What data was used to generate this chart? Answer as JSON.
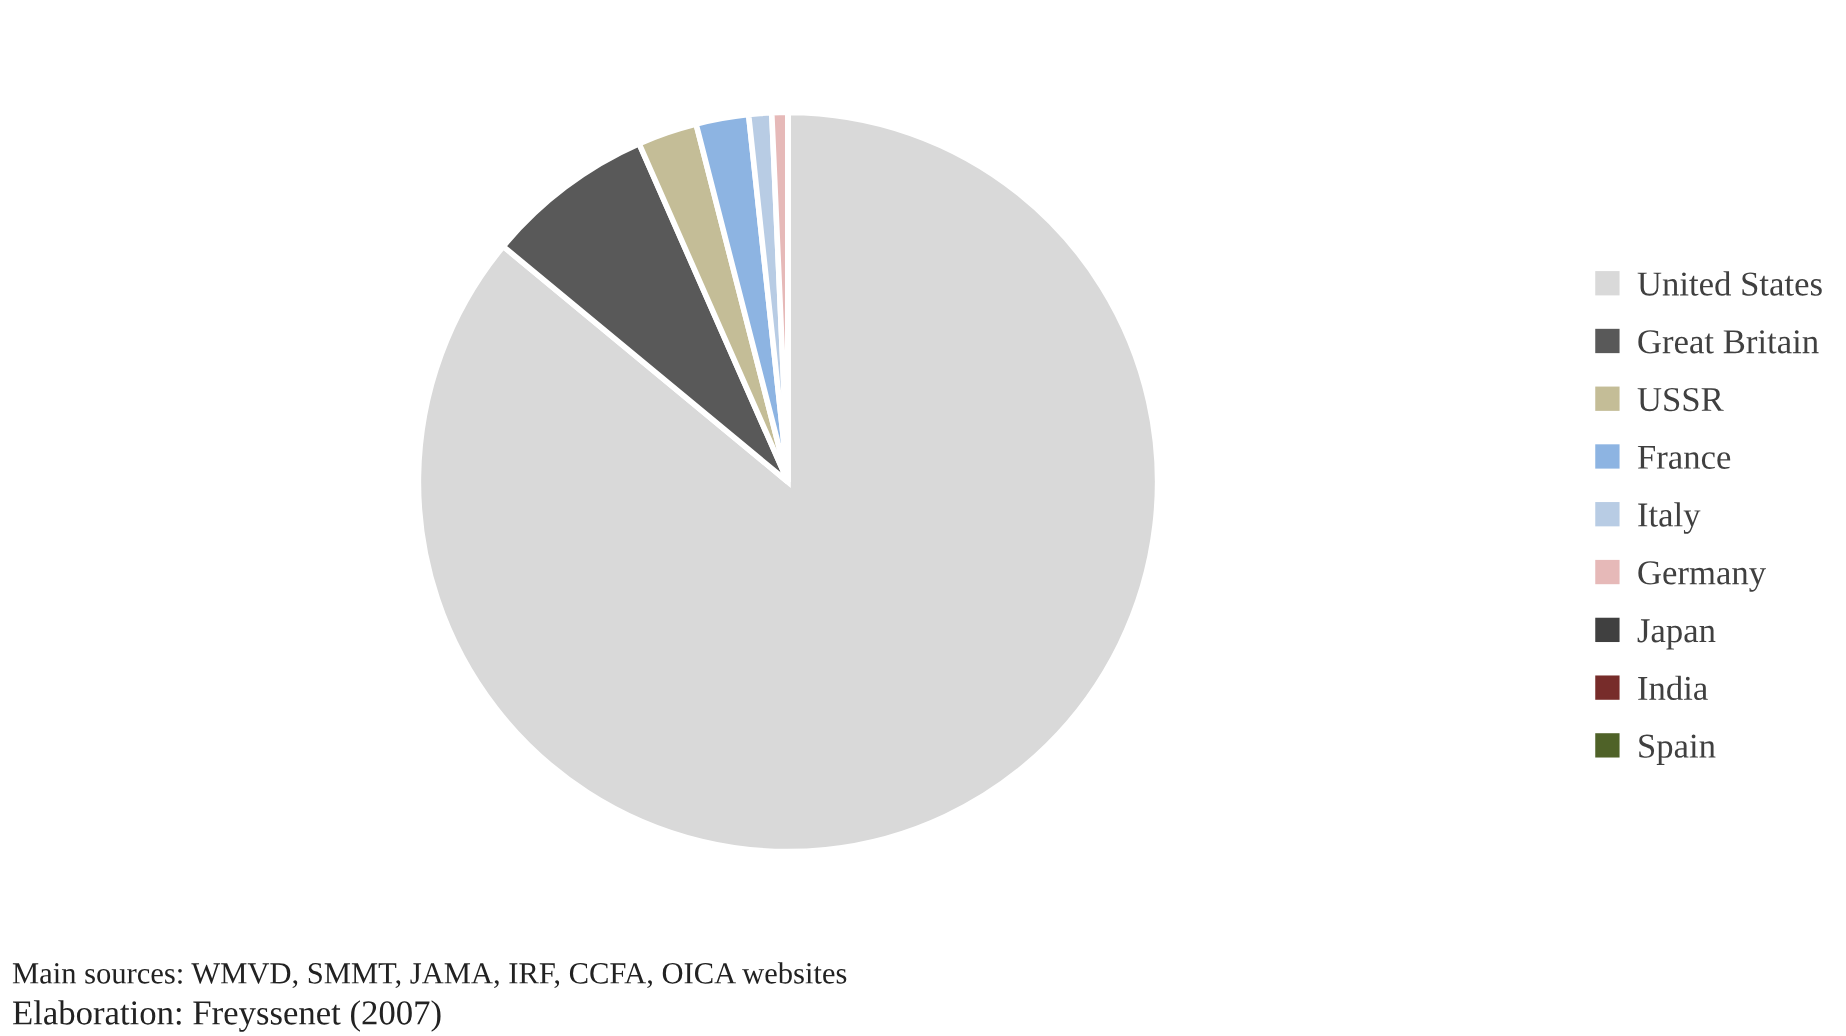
{
  "chart_data": {
    "type": "pie",
    "categories": [
      "United States",
      "Great Britain",
      "USSR",
      "France",
      "Italy",
      "Germany",
      "Japan",
      "India",
      "Spain"
    ],
    "values": [
      86.0,
      7.4,
      2.6,
      2.3,
      1.0,
      0.7,
      0,
      0,
      0
    ],
    "colors": [
      "#d9d9d9",
      "#595959",
      "#c4bd97",
      "#8db4e2",
      "#b8cce4",
      "#e6b9b8",
      "#404040",
      "#772c2a",
      "#4f6228"
    ],
    "legend": "right",
    "annotations": [
      "Main sources: WMVD, SMMT, JAMA, IRF, CCFA, OICA websites",
      "Elaboration: Freyssenet (2007)"
    ]
  }
}
